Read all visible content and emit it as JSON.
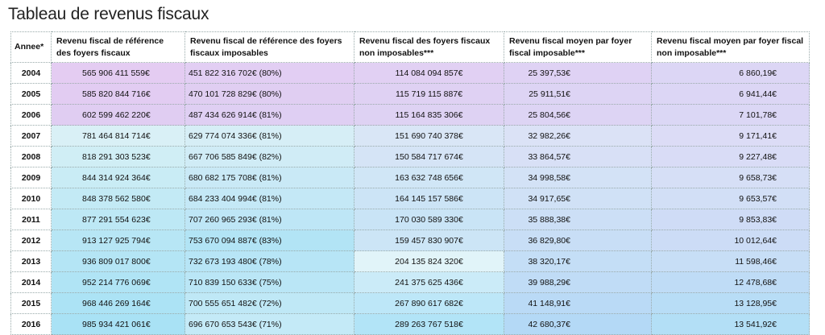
{
  "title": "Tableau de revenus fiscaux",
  "headers": [
    "Annee*",
    "Revenu fiscal de référence des foyers fiscaux",
    "Revenu fiscal de référence des foyers fiscaux imposables",
    "Revenu fiscal des foyers fiscaux non imposables***",
    "Revenu fiscal moyen par foyer fiscal imposable***",
    "Revenu fiscal moyen par foyer fiscal non imposable***"
  ],
  "rows": [
    [
      "2004",
      "565 906 411 559€",
      "451 822 316 702€ (80%)",
      "114 084 094 857€",
      "25 397,53€",
      "6 860,19€"
    ],
    [
      "2005",
      "585 820 844 716€",
      "470 101 728 829€ (80%)",
      "115 719 115 887€",
      "25 911,51€",
      "6 941,44€"
    ],
    [
      "2006",
      "602 599 462 220€",
      "487 434 626 914€ (81%)",
      "115 164 835 306€",
      "25 804,56€",
      "7 101,78€"
    ],
    [
      "2007",
      "781 464 814 714€",
      "629 774 074 336€ (81%)",
      "151 690 740 378€",
      "32 982,26€",
      "9 171,41€"
    ],
    [
      "2008",
      "818 291 303 523€",
      "667 706 585 849€ (82%)",
      "150 584 717 674€",
      "33 864,57€",
      "9 227,48€"
    ],
    [
      "2009",
      "844 314 924 364€",
      "680 682 175 708€ (81%)",
      "163 632 748 656€",
      "34 998,58€",
      "9 658,73€"
    ],
    [
      "2010",
      "848 378 562 580€",
      "684 233 404 994€ (81%)",
      "164 145 157 586€",
      "34 917,65€",
      "9 653,57€"
    ],
    [
      "2011",
      "877 291 554 623€",
      "707 260 965 293€ (81%)",
      "170 030 589 330€",
      "35 888,38€",
      "9 853,83€"
    ],
    [
      "2012",
      "913 127 925 794€",
      "753 670 094 887€ (83%)",
      "159 457 830 907€",
      "36 829,80€",
      "10 012,64€"
    ],
    [
      "2013",
      "936 809 017 800€",
      "732 673 193 480€ (78%)",
      "204 135 824 320€",
      "38 320,17€",
      "11 598,46€"
    ],
    [
      "2014",
      "952 214 776 069€",
      "710 839 150 633€ (75%)",
      "241 375 625 436€",
      "39 988,29€",
      "12 478,68€"
    ],
    [
      "2015",
      "968 446 269 164€",
      "700 555 651 482€ (72%)",
      "267 890 617 682€",
      "41 148,91€",
      "13 128,95€"
    ],
    [
      "2016",
      "985 934 421 061€",
      "696 670 653 543€ (71%)",
      "289 263 767 518€",
      "42 680,37€",
      "13 541,92€"
    ]
  ],
  "cell_colors": [
    [
      "#e4ccf2",
      "#e2cef3",
      "#e1d0f3",
      "#dfd2f4",
      "#dcd6f5"
    ],
    [
      "#e2ccf2",
      "#e0cef2",
      "#dfd1f3",
      "#ddd4f4",
      "#dcd6f5"
    ],
    [
      "#e0cdf2",
      "#dfcff3",
      "#ded2f3",
      "#ddd4f4",
      "#dbd7f5"
    ],
    [
      "#d9f0f6",
      "#d6eef6",
      "#d9e6f6",
      "#dbe2f6",
      "#dcdcf6"
    ],
    [
      "#d0eef5",
      "#d0ecf6",
      "#d5e4f6",
      "#d8e0f6",
      "#d9dcf6"
    ],
    [
      "#c9ecf5",
      "#c9e9f6",
      "#d0e6f6",
      "#d3e2f6",
      "#d6dff6"
    ],
    [
      "#c3eaf5",
      "#c4e8f6",
      "#cce4f6",
      "#d0e1f6",
      "#d2dff6"
    ],
    [
      "#bde8f5",
      "#bee6f6",
      "#c9e4f6",
      "#ccdff6",
      "#cfdcf6"
    ],
    [
      "#b7e6f5",
      "#b2e4f5",
      "#cce5f6",
      "#c8def6",
      "#ccdcf6"
    ],
    [
      "#b4e5f5",
      "#b7e5f6",
      "#e1f4f9",
      "#c4def6",
      "#c7def6"
    ],
    [
      "#b0e4f5",
      "#bae6f6",
      "#cbebf8",
      "#c0dcf6",
      "#bfdcf6"
    ],
    [
      "#ace3f5",
      "#bfe8f6",
      "#bde7f8",
      "#badaf6",
      "#b8ddf6"
    ],
    [
      "#a9e2f5",
      "#c4eaf7",
      "#b2e4f7",
      "#b4d9f6",
      "#b3dff6"
    ]
  ]
}
